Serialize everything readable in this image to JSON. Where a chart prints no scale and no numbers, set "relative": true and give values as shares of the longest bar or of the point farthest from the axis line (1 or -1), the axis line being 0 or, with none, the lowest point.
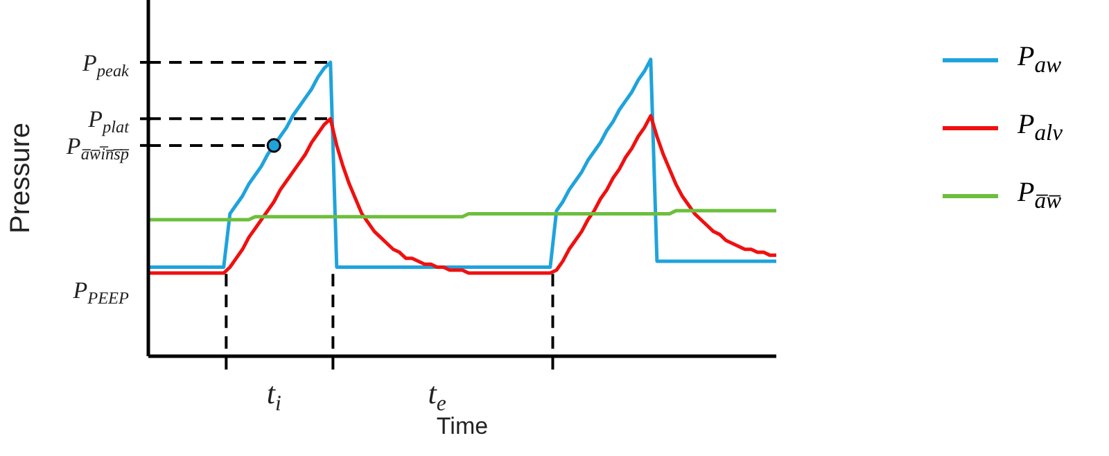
{
  "chart_data": {
    "type": "line",
    "relative": true,
    "xlabel": "Time",
    "ylabel": "Pressure",
    "legend": "right",
    "line_style": "solid",
    "categories": [
      null,
      null,
      null,
      null,
      null,
      null,
      null,
      null,
      null,
      null,
      null,
      null,
      null,
      null,
      null,
      null,
      null,
      null,
      null,
      null,
      "t$_{i}$",
      null,
      null,
      null,
      null,
      null,
      null,
      null,
      null,
      null,
      null,
      null,
      null,
      null,
      null,
      null,
      null,
      null,
      null,
      null,
      null,
      null,
      null,
      null,
      null,
      null,
      "t$_{e}$",
      null,
      null,
      null,
      null,
      null,
      null,
      null,
      null,
      null,
      null,
      null,
      null,
      null,
      null,
      null,
      null,
      null,
      null,
      null,
      null,
      null,
      null,
      null,
      null,
      null,
      null,
      null,
      null,
      null,
      null,
      null,
      null,
      null,
      null,
      null,
      null,
      null,
      null,
      null,
      null,
      null,
      null,
      null,
      null,
      null,
      null,
      null,
      null,
      null,
      null,
      null,
      null,
      null,
      null
    ],
    "annotations": [
      "P$_{PEEP}$"
    ],
    "ref_lines": [
      {
        "axis": "y",
        "value": 0.99,
        "label": "P$_{peak}$",
        "line_style": "dashed",
        "color": "#000000"
      },
      {
        "axis": "y",
        "value": 0.8,
        "label": "P$_{plat}$",
        "line_style": "dashed",
        "color": "#000000"
      },
      {
        "axis": "y",
        "value": 0.71,
        "label": "P$_{a̅w̅i̅n̅s̅p̅}$",
        "line_style": "dashed",
        "color": "#000000"
      }
    ],
    "series": [
      {
        "name": "P$_{aw}$",
        "color": "#1fa3dc",
        "values": [
          0.3,
          0.3,
          0.3,
          0.3,
          0.3,
          0.3,
          0.3,
          0.3,
          0.3,
          0.3,
          0.3,
          0.3,
          0.3,
          0.48,
          0.51,
          0.54,
          0.58,
          0.61,
          0.64,
          0.68,
          0.71,
          0.74,
          0.77,
          0.81,
          0.84,
          0.87,
          0.9,
          0.94,
          0.97,
          0.99,
          0.3,
          0.3,
          0.3,
          0.3,
          0.3,
          0.3,
          0.3,
          0.3,
          0.3,
          0.3,
          0.3,
          0.3,
          0.3,
          0.3,
          0.3,
          0.3,
          0.3,
          0.3,
          0.3,
          0.3,
          0.3,
          0.3,
          0.3,
          0.3,
          0.3,
          0.3,
          0.3,
          0.3,
          0.3,
          0.3,
          0.3,
          0.3,
          0.3,
          0.3,
          0.3,
          0.49,
          0.52,
          0.56,
          0.59,
          0.62,
          0.66,
          0.69,
          0.72,
          0.76,
          0.79,
          0.83,
          0.86,
          0.89,
          0.93,
          0.96,
          1,
          0.32,
          0.32,
          0.32,
          0.32,
          0.32,
          0.32,
          0.32,
          0.32,
          0.32,
          0.32,
          0.32,
          0.32,
          0.32,
          0.32,
          0.32,
          0.32,
          0.32,
          0.32,
          0.32,
          0.32
        ]
      },
      {
        "name": "P$_{alv}$",
        "color": "#f01010",
        "values": [
          0.28,
          0.28,
          0.28,
          0.28,
          0.28,
          0.28,
          0.28,
          0.28,
          0.28,
          0.28,
          0.28,
          0.28,
          0.28,
          0.3,
          0.33,
          0.36,
          0.4,
          0.43,
          0.46,
          0.49,
          0.52,
          0.56,
          0.59,
          0.62,
          0.65,
          0.68,
          0.72,
          0.75,
          0.78,
          0.8,
          0.71,
          0.64,
          0.58,
          0.53,
          0.48,
          0.45,
          0.42,
          0.4,
          0.38,
          0.36,
          0.35,
          0.33,
          0.33,
          0.32,
          0.31,
          0.31,
          0.3,
          0.3,
          0.29,
          0.29,
          0.29,
          0.28,
          0.28,
          0.28,
          0.28,
          0.28,
          0.28,
          0.28,
          0.28,
          0.28,
          0.28,
          0.28,
          0.28,
          0.28,
          0.28,
          0.29,
          0.32,
          0.36,
          0.39,
          0.42,
          0.46,
          0.49,
          0.53,
          0.56,
          0.6,
          0.63,
          0.67,
          0.7,
          0.74,
          0.77,
          0.81,
          0.74,
          0.68,
          0.63,
          0.58,
          0.54,
          0.51,
          0.48,
          0.46,
          0.44,
          0.42,
          0.41,
          0.39,
          0.38,
          0.37,
          0.36,
          0.36,
          0.35,
          0.35,
          0.34,
          0.34
        ]
      },
      {
        "name": "P$_{a̅w̅}$",
        "color": "#6cbf3c",
        "values": [
          0.46,
          0.46,
          0.46,
          0.46,
          0.46,
          0.46,
          0.46,
          0.46,
          0.46,
          0.46,
          0.46,
          0.46,
          0.46,
          0.46,
          0.46,
          0.46,
          0.46,
          0.47,
          0.47,
          0.47,
          0.47,
          0.47,
          0.47,
          0.47,
          0.47,
          0.47,
          0.47,
          0.47,
          0.47,
          0.47,
          0.47,
          0.47,
          0.47,
          0.47,
          0.47,
          0.47,
          0.47,
          0.47,
          0.47,
          0.47,
          0.47,
          0.47,
          0.47,
          0.47,
          0.47,
          0.47,
          0.47,
          0.47,
          0.47,
          0.47,
          0.47,
          0.48,
          0.48,
          0.48,
          0.48,
          0.48,
          0.48,
          0.48,
          0.48,
          0.48,
          0.48,
          0.48,
          0.48,
          0.48,
          0.48,
          0.48,
          0.48,
          0.48,
          0.48,
          0.48,
          0.48,
          0.48,
          0.48,
          0.48,
          0.48,
          0.48,
          0.48,
          0.48,
          0.48,
          0.48,
          0.48,
          0.48,
          0.48,
          0.48,
          0.49,
          0.49,
          0.49,
          0.49,
          0.49,
          0.49,
          0.49,
          0.49,
          0.49,
          0.49,
          0.49,
          0.49,
          0.49,
          0.49,
          0.49,
          0.49,
          0.49
        ]
      },
      {
        "type": "scatter",
        "marker": "circle",
        "color": "#1fa3dc",
        "values": [
          null,
          null,
          null,
          null,
          null,
          null,
          null,
          null,
          null,
          null,
          null,
          null,
          null,
          null,
          null,
          null,
          null,
          null,
          null,
          null,
          0.71,
          null,
          null,
          null,
          null,
          null,
          null,
          null,
          null,
          null,
          null,
          null,
          null,
          null,
          null,
          null,
          null,
          null,
          null,
          null,
          null,
          null,
          null,
          null,
          null,
          null,
          null,
          null,
          null,
          null,
          null,
          null,
          null,
          null,
          null,
          null,
          null,
          null,
          null,
          null,
          null,
          null,
          null,
          null,
          null,
          null,
          null,
          null,
          null,
          null,
          null,
          null,
          null,
          null,
          null,
          null,
          null,
          null,
          null,
          null,
          null,
          null,
          null,
          null,
          null,
          null,
          null,
          null,
          null,
          null,
          null,
          null,
          null,
          null,
          null,
          null,
          null,
          null,
          null,
          null,
          null
        ]
      }
    ]
  }
}
